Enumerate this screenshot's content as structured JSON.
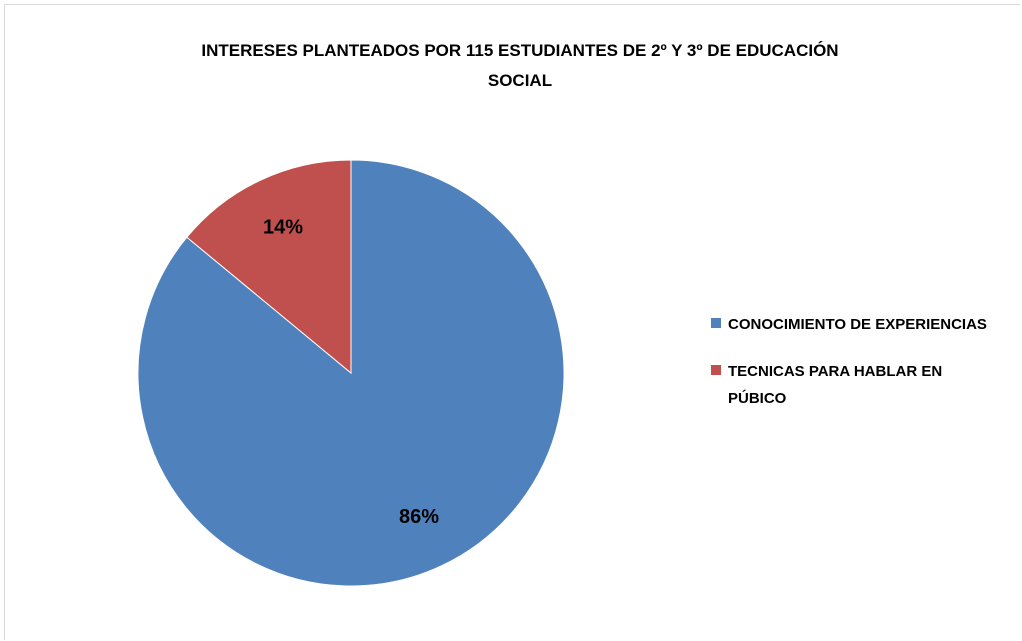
{
  "chart_data": {
    "type": "pie",
    "title": "INTERESES PLANTEADOS POR 115 ESTUDIANTES DE 2º Y 3º DE EDUCACIÓN SOCIAL",
    "categories": [
      "CONOCIMIENTO DE EXPERIENCIAS",
      "TECNICAS PARA HABLAR EN PÚBICO"
    ],
    "values": [
      86,
      14
    ],
    "value_labels": [
      "86%",
      "14%"
    ],
    "colors": [
      "#4f81bd",
      "#c0504d"
    ],
    "legend": "right"
  }
}
